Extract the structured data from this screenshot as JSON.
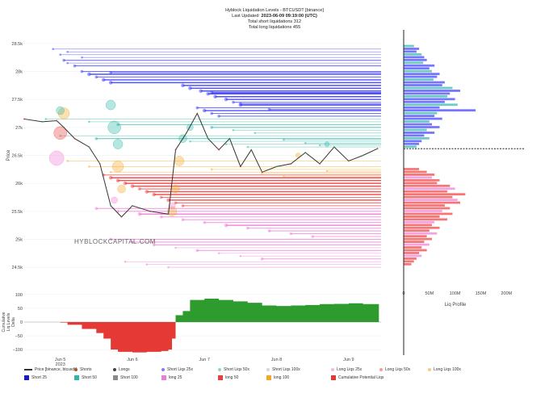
{
  "header": {
    "title": "Hyblock Liquidation Levels - BTCUSDT [binance]",
    "updated_label": "Last Updated:",
    "updated_value": "2023-06-09 09:19:00 (UTC)",
    "short_line": "Total short liquidations 312",
    "long_line": "Total long liquidations 455"
  },
  "watermark": "HYBLOCKCAPITAL.COM",
  "colors": {
    "short_blue": "#3b3bff",
    "short_teal": "#2eb6a6",
    "long_pink": "#f07ad6",
    "long_red": "#f03c3c",
    "long_orange": "#f5a623",
    "price": "#333333",
    "cum_green": "#2e9b2e",
    "cum_red": "#e53935",
    "current_price_line": "#000000"
  },
  "chart_data": [
    {
      "type": "line",
      "name": "price-chart",
      "ylabel": "Price",
      "ylim": [
        24300,
        28700
      ],
      "yticks": [
        24500,
        25000,
        25500,
        26000,
        26500,
        27000,
        27500,
        28000,
        28500
      ],
      "ytick_labels": [
        "24.5k",
        "25k",
        "25.5k",
        "26k",
        "26.5k",
        "27k",
        "27.5k",
        "28k",
        "28.5k"
      ],
      "xlim": [
        0,
        4.95
      ],
      "x_ticks": [
        0.5,
        1.5,
        2.5,
        3.5,
        4.5
      ],
      "x_tick_labels": [
        "Jun 5\n2023",
        "Jun 6",
        "Jun 7",
        "Jun 8",
        "Jun 9"
      ],
      "series": [
        {
          "name": "Price [binance, btcusdt]",
          "x": [
            0,
            0.25,
            0.45,
            0.55,
            0.7,
            0.9,
            1.05,
            1.2,
            1.35,
            1.5,
            1.75,
            2.0,
            2.1,
            2.25,
            2.4,
            2.55,
            2.7,
            2.85,
            3.0,
            3.15,
            3.3,
            3.5,
            3.7,
            3.9,
            4.1,
            4.3,
            4.5,
            4.7,
            4.9
          ],
          "y": [
            27150,
            27100,
            27120,
            27000,
            26800,
            26650,
            26350,
            25600,
            25400,
            25600,
            25500,
            25450,
            26600,
            26900,
            27250,
            26800,
            26600,
            26800,
            26300,
            26600,
            26200,
            26300,
            26350,
            26550,
            26350,
            26650,
            26400,
            26500,
            26620
          ]
        }
      ],
      "current_price": 26620,
      "short_levels": {
        "name": "Short Liqs",
        "start_x": [
          0.4,
          0.5,
          0.55,
          0.6,
          0.7,
          0.8,
          0.9,
          1.0,
          1.1,
          1.2,
          2.2,
          2.3,
          2.45,
          2.55,
          2.65,
          2.8,
          2.9,
          3.0,
          2.4,
          2.5,
          2.6,
          2.7,
          0.3,
          0.9,
          1.3,
          2.6,
          2.9,
          3.2,
          0.5,
          1.0,
          2.3,
          2.8,
          3.1,
          0.6,
          0.8,
          1.2,
          2.6,
          3.0,
          3.4,
          3.6,
          3.9,
          4.1
        ],
        "price": [
          28400,
          28300,
          28200,
          28150,
          28100,
          28000,
          27950,
          27900,
          27850,
          27800,
          27750,
          27700,
          27650,
          27600,
          27550,
          27500,
          27450,
          27400,
          27350,
          27300,
          27250,
          27200,
          27150,
          27100,
          27050,
          27000,
          26950,
          26900,
          26850,
          26800,
          26750,
          26700,
          26650,
          28350,
          28250,
          27980,
          27620,
          27420,
          27320,
          26780,
          26720,
          26680
        ],
        "strength": [
          1,
          1,
          2,
          1,
          2,
          2,
          3,
          2,
          3,
          3,
          3,
          3,
          3,
          3,
          3,
          3,
          2,
          3,
          2,
          3,
          2,
          2,
          1,
          1,
          2,
          2,
          1,
          1,
          1,
          2,
          1,
          1,
          1,
          1,
          1,
          2,
          3,
          2,
          2,
          1,
          1,
          1
        ],
        "category": [
          "short25",
          "short25",
          "short25",
          "short25",
          "short25",
          "short25",
          "short25",
          "short25",
          "short25",
          "short25",
          "short25",
          "short25",
          "short25",
          "short25",
          "short25",
          "short25",
          "short25",
          "short25",
          "short25",
          "short25",
          "short25",
          "short25",
          "short50",
          "short50",
          "short50",
          "short50",
          "short50",
          "short50",
          "short50",
          "short50",
          "short50",
          "short50",
          "short50",
          "short25",
          "short25",
          "short25",
          "short25",
          "short25",
          "short25",
          "short50",
          "short50",
          "short50"
        ]
      },
      "long_levels": {
        "name": "Long Liqs",
        "start_x": [
          1.1,
          1.2,
          1.3,
          1.4,
          1.5,
          1.6,
          1.7,
          1.8,
          1.9,
          2.0,
          2.1,
          2.2,
          1.0,
          1.3,
          1.6,
          1.9,
          2.2,
          2.5,
          2.8,
          3.1,
          3.4,
          3.7,
          4.0,
          1.2,
          1.5,
          1.8,
          2.1,
          2.4,
          2.7,
          3.0,
          3.3,
          0.6,
          0.9,
          1.2,
          2.6,
          3.3,
          3.6,
          4.2,
          1.4,
          1.7,
          2.0
        ],
        "price": [
          26150,
          26100,
          26050,
          26000,
          25950,
          25900,
          25850,
          25800,
          25750,
          25700,
          25650,
          25600,
          25550,
          25500,
          25450,
          25400,
          25350,
          25300,
          25250,
          25200,
          25150,
          25100,
          25050,
          25000,
          24950,
          24900,
          24850,
          24800,
          24750,
          24700,
          24650,
          26400,
          26300,
          26200,
          26250,
          26180,
          26120,
          26220,
          24600,
          24550,
          24500
        ],
        "strength": [
          2,
          3,
          3,
          3,
          3,
          2,
          3,
          3,
          2,
          3,
          2,
          2,
          2,
          2,
          3,
          2,
          2,
          2,
          3,
          2,
          2,
          2,
          2,
          2,
          2,
          2,
          1,
          2,
          1,
          1,
          2,
          1,
          1,
          1,
          1,
          1,
          1,
          1,
          1,
          1,
          1
        ],
        "category": [
          "long50",
          "long50",
          "long50",
          "long50",
          "long50",
          "long50",
          "long50",
          "long50",
          "long50",
          "long50",
          "long50",
          "long50",
          "long25",
          "long25",
          "long25",
          "long25",
          "long25",
          "long25",
          "long25",
          "long25",
          "long25",
          "long25",
          "long25",
          "long25",
          "long25",
          "long25",
          "long25",
          "long25",
          "long25",
          "long25",
          "long25",
          "long100",
          "long100",
          "long100",
          "long100",
          "long100",
          "long100",
          "long100",
          "long25",
          "long25",
          "long25"
        ]
      },
      "bubbles": {
        "x": [
          0.45,
          0.5,
          0.55,
          1.2,
          1.25,
          1.3,
          1.3,
          1.35,
          2.05,
          2.1,
          2.15,
          2.2,
          2.3,
          0.5,
          1.25,
          2.05,
          3.8,
          4.2
        ],
        "y": [
          26450,
          26900,
          27250,
          27400,
          27000,
          26700,
          26300,
          25900,
          25500,
          25900,
          26400,
          26800,
          27000,
          27300,
          25700,
          25600,
          26500,
          26700
        ],
        "r": [
          9,
          8,
          7,
          6,
          8,
          6,
          7,
          5,
          6,
          5,
          6,
          5,
          4,
          5,
          4,
          4,
          3,
          3
        ],
        "category": [
          "long25",
          "long50",
          "long100",
          "short50",
          "short50",
          "short50",
          "long100",
          "long100",
          "long100",
          "long100",
          "long100",
          "short50",
          "short50",
          "short50",
          "long25",
          "long25",
          "long100",
          "short50"
        ]
      }
    },
    {
      "type": "bar",
      "name": "liq-profile",
      "xlabel": "Liq Profile",
      "xlim": [
        0,
        220
      ],
      "xticks": [
        0,
        50,
        100,
        150,
        200
      ],
      "xtick_labels": [
        "0",
        "50M",
        "100M",
        "150M",
        "200M"
      ],
      "price": [
        28450,
        28400,
        28350,
        28300,
        28250,
        28200,
        28150,
        28100,
        28050,
        28000,
        27950,
        27900,
        27850,
        27800,
        27750,
        27700,
        27650,
        27600,
        27550,
        27500,
        27450,
        27400,
        27350,
        27300,
        27250,
        27200,
        27150,
        27100,
        27050,
        27000,
        26950,
        26900,
        26850,
        26800,
        26750,
        26700,
        26650,
        26250,
        26200,
        26150,
        26100,
        26050,
        26000,
        25950,
        25900,
        25850,
        25800,
        25750,
        25700,
        25650,
        25600,
        25550,
        25500,
        25450,
        25400,
        25350,
        25300,
        25250,
        25200,
        25150,
        25100,
        25050,
        25000,
        24950,
        24900,
        24850,
        24800,
        24750,
        24700,
        24650,
        24600,
        24550
      ],
      "values": [
        20,
        30,
        25,
        35,
        40,
        45,
        38,
        60,
        50,
        55,
        70,
        65,
        58,
        80,
        75,
        95,
        110,
        90,
        85,
        100,
        80,
        105,
        70,
        140,
        65,
        60,
        75,
        50,
        55,
        70,
        45,
        60,
        40,
        50,
        35,
        30,
        25,
        30,
        45,
        60,
        55,
        70,
        65,
        90,
        100,
        85,
        120,
        95,
        105,
        110,
        80,
        90,
        75,
        95,
        70,
        85,
        60,
        55,
        70,
        50,
        65,
        45,
        55,
        40,
        50,
        35,
        45,
        30,
        35,
        25,
        20,
        15
      ],
      "side": [
        "short",
        "short",
        "short",
        "short",
        "short",
        "short",
        "short",
        "short",
        "short",
        "short",
        "short",
        "short",
        "short",
        "short",
        "short",
        "short",
        "short",
        "short",
        "short",
        "short",
        "short",
        "short",
        "short",
        "short",
        "short",
        "short",
        "short",
        "short",
        "short",
        "short",
        "short",
        "short",
        "short",
        "short",
        "short",
        "short",
        "short",
        "long",
        "long",
        "long",
        "long",
        "long",
        "long",
        "long",
        "long",
        "long",
        "long",
        "long",
        "long",
        "long",
        "long",
        "long",
        "long",
        "long",
        "long",
        "long",
        "long",
        "long",
        "long",
        "long",
        "long",
        "long",
        "long",
        "long",
        "long",
        "long",
        "long",
        "long",
        "long",
        "long",
        "long",
        "long"
      ]
    },
    {
      "type": "area",
      "name": "cumulative-delta",
      "ylabel": "Cumulative\nLiq Levels\nDelta",
      "ylim": [
        -120,
        120
      ],
      "yticks": [
        -100,
        -50,
        0,
        50,
        100
      ],
      "ytick_labels": [
        "−100",
        "−50",
        "0",
        "50",
        "100"
      ],
      "x": [
        0,
        0.2,
        0.4,
        0.5,
        0.6,
        0.8,
        1.0,
        1.1,
        1.2,
        1.3,
        1.5,
        1.7,
        1.9,
        2.0,
        2.05,
        2.1,
        2.2,
        2.3,
        2.5,
        2.7,
        2.9,
        3.1,
        3.3,
        3.5,
        3.7,
        3.9,
        4.1,
        4.3,
        4.5,
        4.7,
        4.92
      ],
      "values": [
        0,
        0,
        0,
        -2,
        -10,
        -25,
        -40,
        -60,
        -100,
        -108,
        -110,
        -108,
        -105,
        -100,
        -60,
        25,
        40,
        80,
        85,
        80,
        75,
        70,
        60,
        58,
        60,
        62,
        65,
        66,
        68,
        65,
        70
      ]
    }
  ],
  "legend": [
    {
      "label": "Price [binance, btcusdt]",
      "kind": "line",
      "color": "#333333"
    },
    {
      "label": "Shorts",
      "kind": "dot",
      "color": "#a35a2a"
    },
    {
      "label": "Longs",
      "kind": "dot",
      "color": "#444444"
    },
    {
      "label": "Short Liqs 25x",
      "kind": "dot",
      "color": "#7d7dff"
    },
    {
      "label": "Short Liqs 50x",
      "kind": "dot",
      "color": "#8ad8c8"
    },
    {
      "label": "Short Liqs 100x",
      "kind": "dot",
      "color": "#c9d8e8"
    },
    {
      "label": "Long Liqs 25x",
      "kind": "dot",
      "color": "#f8b6ea"
    },
    {
      "label": "Long Liqs 50x",
      "kind": "dot",
      "color": "#f89a9a"
    },
    {
      "label": "Long Liqs 100x",
      "kind": "dot",
      "color": "#f8c98a"
    },
    {
      "label": "Short 25",
      "kind": "square",
      "color": "#1a1acc"
    },
    {
      "label": "Short 50",
      "kind": "square",
      "color": "#2eb6a6"
    },
    {
      "label": "Short 100",
      "kind": "square",
      "color": "#8a8a8a"
    },
    {
      "label": "long 25",
      "kind": "square",
      "color": "#f07ad6"
    },
    {
      "label": "long 50",
      "kind": "square",
      "color": "#f03c3c"
    },
    {
      "label": "long 100",
      "kind": "square",
      "color": "#f5a623"
    },
    {
      "label": "Cumulative Potential Liqs",
      "kind": "square",
      "color": "#e53935"
    }
  ]
}
